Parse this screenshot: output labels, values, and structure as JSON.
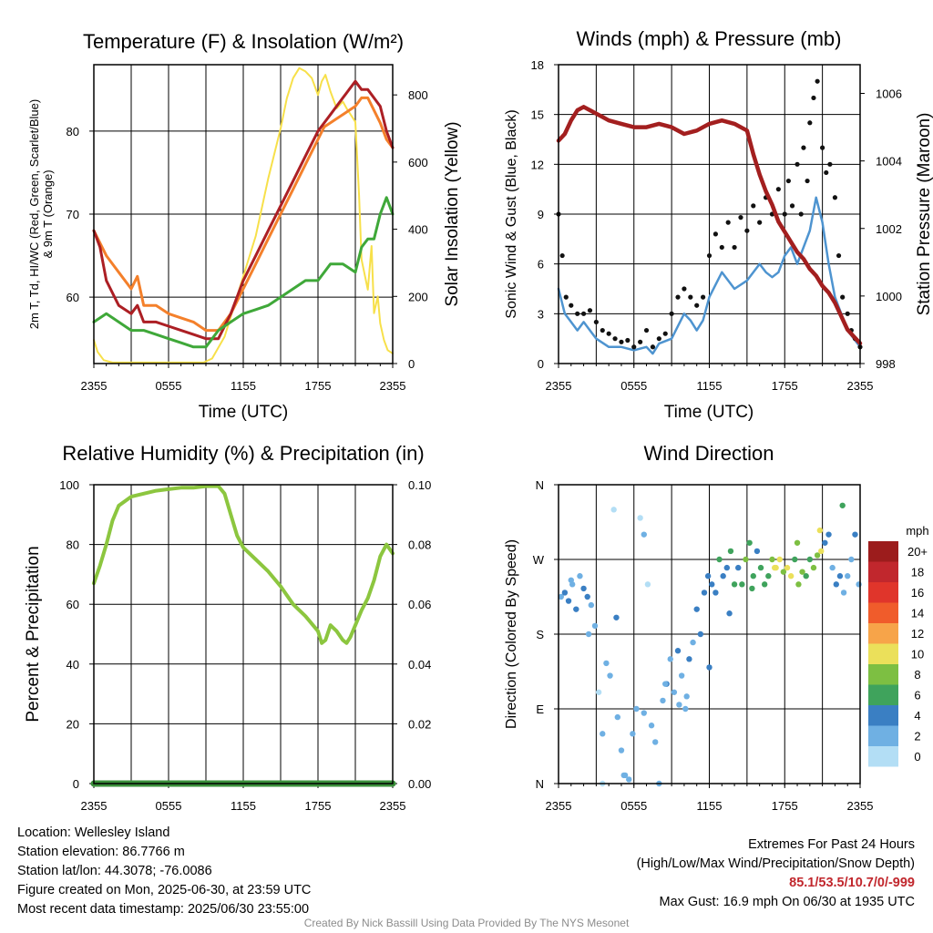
{
  "panels": {
    "temp": {
      "title": "Temperature (F) & Insolation (W/m²)",
      "xlabel": "Time (UTC)",
      "ylabel_left_line1": "2m T, Td, HI/WC (Red, Green, Scarlet/Blue)",
      "ylabel_left_line2": "& 9m T (Orange)",
      "ylabel_right": "Solar Insolation (Yellow)"
    },
    "wind": {
      "title": "Winds (mph) & Pressure (mb)",
      "xlabel": "Time (UTC)",
      "ylabel_left": "Sonic Wind & Gust (Blue, Black)",
      "ylabel_right": "Station Pressure (Maroon)"
    },
    "rh": {
      "title": "Relative Humidity (%) & Precipitation (in)",
      "ylabel_left": "Percent & Precipitation"
    },
    "dir": {
      "title": "Wind Direction",
      "ylabel_left": "Direction (Colored By Speed)",
      "legend_title": "mph"
    }
  },
  "chart_data": [
    {
      "id": "temp",
      "type": "line",
      "title": "Temperature (F) & Insolation (W/m²)",
      "xlabel": "Time (UTC)",
      "x_ticks": [
        "2355",
        "0555",
        "1155",
        "1755",
        "2355"
      ],
      "xlim_hours": [
        0,
        24
      ],
      "ylim_left": [
        52,
        88
      ],
      "yticks_left": [
        60,
        70,
        80
      ],
      "ylim_right": [
        0,
        890
      ],
      "yticks_right": [
        0,
        200,
        400,
        600,
        800
      ],
      "grid": true,
      "series": [
        {
          "axis": "left",
          "color": "#f4802b",
          "width": 3,
          "x": [
            0,
            1,
            2,
            3,
            3.5,
            4,
            5,
            6,
            7,
            8,
            9,
            10,
            11,
            12,
            13,
            14,
            15,
            16,
            17,
            18,
            18.5,
            19,
            20,
            21,
            21.5,
            22,
            23,
            23.5,
            24
          ],
          "y": [
            68,
            65,
            63,
            61,
            62.5,
            59,
            59,
            58,
            57.5,
            57,
            56,
            56,
            58,
            61,
            64,
            67,
            70,
            73,
            76,
            79,
            80.5,
            81,
            82,
            83,
            84,
            84,
            81,
            79,
            78
          ]
        },
        {
          "axis": "left",
          "color": "#ac1f24",
          "width": 3,
          "x": [
            0,
            0.5,
            1,
            2,
            3,
            3.5,
            4,
            5,
            6,
            7,
            8,
            9,
            10,
            11,
            12,
            13,
            14,
            15,
            16,
            17,
            18,
            19,
            20,
            21,
            21.5,
            22,
            23,
            23.5,
            24
          ],
          "y": [
            68,
            66,
            62,
            59,
            58,
            59,
            57,
            57,
            56.5,
            56,
            55.5,
            55,
            55,
            58,
            62,
            65,
            68,
            71,
            74,
            77,
            80,
            82,
            84,
            86,
            85,
            85,
            83,
            80,
            78
          ]
        },
        {
          "axis": "left",
          "color": "#3fa839",
          "width": 3,
          "x": [
            0,
            1,
            2,
            3,
            4,
            5,
            6,
            7,
            8,
            9,
            10,
            11,
            12,
            13,
            14,
            15,
            16,
            17,
            18,
            19,
            20,
            21,
            21.5,
            22,
            22.5,
            23,
            23.5,
            24
          ],
          "y": [
            57,
            58,
            57,
            56,
            56,
            55.5,
            55,
            54.5,
            54,
            54,
            56,
            57,
            58,
            58.5,
            59,
            60,
            61,
            62,
            62,
            64,
            64,
            63,
            66,
            67,
            67,
            70,
            72,
            70
          ]
        },
        {
          "axis": "right",
          "color": "#f7e04a",
          "width": 2,
          "x": [
            0,
            0.3,
            0.8,
            1.5,
            3,
            5,
            7,
            8.8,
            9.5,
            10.5,
            11.5,
            13,
            14,
            15,
            15.5,
            16,
            16.5,
            17,
            17.5,
            18,
            18.3,
            18.6,
            19,
            19.5,
            20,
            20.3,
            21,
            21.3,
            21.5,
            22,
            22.3,
            22.5,
            22.8,
            23,
            23.3,
            23.6,
            24
          ],
          "y": [
            70,
            35,
            10,
            3,
            3,
            3,
            3,
            3,
            15,
            80,
            200,
            380,
            550,
            700,
            790,
            850,
            880,
            870,
            850,
            800,
            840,
            860,
            810,
            760,
            780,
            760,
            720,
            500,
            310,
            220,
            350,
            150,
            200,
            120,
            70,
            40,
            30
          ]
        }
      ]
    },
    {
      "id": "wind",
      "type": "line",
      "title": "Winds (mph) & Pressure (mb)",
      "xlabel": "Time (UTC)",
      "x_ticks": [
        "2355",
        "0555",
        "1155",
        "1755",
        "2355"
      ],
      "xlim_hours": [
        0,
        24
      ],
      "ylim_left": [
        0,
        18
      ],
      "yticks_left": [
        0,
        3,
        6,
        9,
        12,
        15,
        18
      ],
      "ylim_right": [
        998,
        1006.85
      ],
      "yticks_right": [
        998,
        1000,
        1002,
        1004,
        1006
      ],
      "grid": true,
      "series": [
        {
          "axis": "left",
          "color": "#4e94d0",
          "width": 2.5,
          "x": [
            0,
            0.5,
            1,
            1.5,
            2,
            2.5,
            3,
            4,
            5,
            6,
            7,
            7.5,
            8,
            9,
            10,
            10.5,
            11,
            11.5,
            12,
            13,
            14,
            15,
            16,
            16.5,
            17,
            17.5,
            18,
            18.5,
            19,
            19.5,
            20,
            20.5,
            21,
            21.5,
            22,
            22.5,
            23,
            23.5,
            24
          ],
          "y": [
            4.5,
            3,
            2.5,
            2,
            2.5,
            2,
            1.5,
            1,
            1,
            0.8,
            1,
            0.6,
            1.2,
            1.5,
            3,
            2.6,
            2,
            2.6,
            4,
            5.5,
            4.5,
            5,
            6,
            5.5,
            5.2,
            5.5,
            6.5,
            7,
            6,
            7,
            8,
            10,
            8.5,
            6,
            4,
            3,
            2,
            1.5,
            1
          ]
        },
        {
          "axis": "right",
          "color": "#a31f1f",
          "width": 4.5,
          "x": [
            0,
            0.5,
            1,
            1.5,
            2,
            2.5,
            3,
            3.5,
            4,
            5,
            6,
            7,
            8,
            9,
            10,
            11,
            12,
            13,
            14,
            15,
            15.5,
            16,
            16.5,
            17,
            17.5,
            18,
            18.5,
            19,
            19.5,
            20,
            20.5,
            21,
            21.5,
            22,
            22.5,
            23,
            23.5,
            24
          ],
          "y": [
            1004.6,
            1004.8,
            1005.2,
            1005.5,
            1005.6,
            1005.5,
            1005.4,
            1005.3,
            1005.2,
            1005.1,
            1005.0,
            1005.0,
            1005.1,
            1005.0,
            1004.8,
            1004.9,
            1005.1,
            1005.2,
            1005.1,
            1004.9,
            1004.2,
            1003.6,
            1003.1,
            1002.7,
            1002.2,
            1001.9,
            1001.6,
            1001.3,
            1001.1,
            1000.8,
            1000.6,
            1000.3,
            1000.1,
            999.8,
            999.4,
            999.0,
            998.8,
            998.6
          ]
        }
      ],
      "points": {
        "name_hint": "gust",
        "color": "#111111",
        "x": [
          0,
          0.3,
          0.6,
          1,
          1.5,
          2,
          2.5,
          3,
          3.5,
          4,
          4.5,
          5,
          5.5,
          6,
          6.5,
          7,
          7.5,
          8,
          8.5,
          9,
          9.5,
          10,
          10.5,
          11,
          11.5,
          12,
          12.5,
          13,
          13.5,
          14,
          14.5,
          15,
          15.5,
          16,
          16.5,
          17,
          17.5,
          18,
          18.3,
          18.6,
          19,
          19.3,
          19.5,
          19.8,
          20,
          20.3,
          20.6,
          21,
          21.3,
          21.6,
          22,
          22.3,
          22.6,
          23,
          23.3,
          23.6,
          24
        ],
        "y": [
          9,
          6.5,
          4,
          3.5,
          3,
          3,
          3.2,
          2.5,
          2,
          1.8,
          1.5,
          1.3,
          1.4,
          1,
          1.3,
          2,
          1,
          1.5,
          1.8,
          3,
          4,
          4.5,
          4,
          3.5,
          4,
          6.5,
          7.8,
          7,
          8.5,
          7,
          8.8,
          8,
          9.5,
          8.5,
          10,
          9,
          10.5,
          9,
          11,
          9.5,
          12,
          9,
          13,
          11,
          14.5,
          16,
          17,
          13,
          11.5,
          12,
          10,
          6.5,
          4,
          3,
          2,
          1.5,
          1
        ]
      }
    },
    {
      "id": "rh",
      "type": "line",
      "title": "Relative Humidity (%) & Precipitation (in)",
      "x_ticks": [
        "2355",
        "0555",
        "1155",
        "1755",
        "2355"
      ],
      "xlim_hours": [
        0,
        24
      ],
      "ylim_left": [
        0,
        100
      ],
      "yticks_left": [
        0,
        20,
        40,
        60,
        80,
        100
      ],
      "ylim_right": [
        0,
        0.1
      ],
      "yticks_right": [
        "0.00",
        "0.02",
        "0.04",
        "0.06",
        "0.08",
        "0.10"
      ],
      "grid": true,
      "series": [
        {
          "axis": "left",
          "color": "#8cc63f",
          "width": 4,
          "x": [
            0,
            0.5,
            1,
            1.5,
            2,
            3,
            4,
            5,
            6,
            7,
            8,
            9,
            10,
            10.5,
            11,
            11.5,
            12,
            13,
            14,
            15,
            16,
            17,
            18,
            18.3,
            18.6,
            19,
            19.5,
            20,
            20.3,
            20.6,
            21,
            21.5,
            22,
            22.5,
            23,
            23.5,
            24
          ],
          "y": [
            67,
            73,
            80,
            88,
            93,
            96,
            97,
            98,
            98.5,
            99,
            99,
            99.5,
            99.5,
            97,
            90,
            83,
            79,
            75,
            71,
            66,
            60,
            56,
            51,
            47,
            48,
            53,
            51,
            48,
            47,
            49,
            53,
            58,
            62,
            68,
            76,
            80,
            77
          ]
        },
        {
          "axis": "right",
          "color": "#3a8f3a",
          "width": 7,
          "x": [
            0,
            24
          ],
          "y": [
            0,
            0
          ]
        }
      ]
    },
    {
      "id": "dir",
      "type": "scatter",
      "title": "Wind Direction",
      "x_ticks": [
        "2355",
        "0555",
        "1155",
        "1755",
        "2355"
      ],
      "xlim_hours": [
        0,
        24
      ],
      "ylim_left": [
        0,
        360
      ],
      "yticks_left": [
        "N",
        "E",
        "S",
        "W",
        "N"
      ],
      "grid": true,
      "legend": {
        "title": "mph",
        "placement": "right",
        "labels": [
          "20+",
          "18",
          "16",
          "14",
          "12",
          "10",
          "8",
          "6",
          "4",
          "2",
          "0"
        ],
        "colors": [
          "#9c1c1c",
          "#c1272d",
          "#e0352b",
          "#f05c2b",
          "#f7a449",
          "#ebe05a",
          "#7dbf42",
          "#3fa35c",
          "#3a7fc3",
          "#6fb0e3",
          "#b3def5"
        ]
      },
      "points": {
        "x": [
          0.2,
          0.5,
          0.8,
          1.1,
          1.4,
          1.7,
          2,
          2.3,
          2.6,
          2.9,
          3.2,
          3.5,
          3.8,
          4.1,
          4.4,
          4.7,
          5,
          5.3,
          5.6,
          5.9,
          6.2,
          6.5,
          6.8,
          7.1,
          7.4,
          7.7,
          8,
          8.3,
          8.6,
          8.9,
          9.2,
          9.5,
          9.8,
          10.1,
          10.4,
          10.7,
          11,
          11.3,
          11.6,
          11.9,
          12.2,
          12.5,
          12.8,
          13.1,
          13.4,
          13.7,
          14,
          14.3,
          14.6,
          14.9,
          15.2,
          15.5,
          15.8,
          16.1,
          16.4,
          16.7,
          17,
          17.3,
          17.6,
          17.9,
          18.2,
          18.5,
          18.8,
          19.1,
          19.4,
          19.7,
          20,
          20.3,
          20.6,
          20.9,
          21.2,
          21.5,
          21.8,
          22.1,
          22.4,
          22.7,
          23,
          23.3,
          23.6,
          23.9,
          3.5,
          5.2,
          6.8,
          8.5,
          10.2,
          12,
          13.6,
          15.4,
          17.2,
          19,
          20.8,
          22.6,
          4.6,
          2.4,
          1,
          9.6
        ],
        "y": [
          225,
          230,
          220,
          240,
          210,
          250,
          235,
          225,
          215,
          190,
          110,
          60,
          145,
          130,
          330,
          80,
          40,
          10,
          5,
          60,
          90,
          320,
          300,
          240,
          70,
          50,
          0,
          100,
          120,
          150,
          110,
          160,
          130,
          90,
          150,
          170,
          210,
          180,
          230,
          250,
          240,
          230,
          270,
          250,
          260,
          280,
          240,
          260,
          240,
          270,
          290,
          250,
          280,
          260,
          240,
          250,
          270,
          260,
          270,
          255,
          260,
          250,
          270,
          240,
          255,
          250,
          270,
          260,
          275,
          280,
          290,
          300,
          260,
          240,
          250,
          230,
          250,
          270,
          300,
          240,
          0,
          10,
          85,
          120,
          105,
          140,
          205,
          235,
          260,
          290,
          305,
          335,
          200,
          180,
          245,
          95
        ],
        "speed": [
          2,
          4,
          3,
          2,
          3,
          1,
          4,
          3,
          2,
          1,
          0,
          1,
          1,
          2,
          0,
          1,
          2,
          1,
          1,
          2,
          1,
          0,
          1,
          0,
          1,
          2,
          1,
          2,
          3,
          2,
          1,
          3,
          2,
          2,
          3,
          2,
          3,
          4,
          3,
          4,
          3,
          4,
          5,
          4,
          3,
          5,
          6,
          4,
          5,
          7,
          6,
          5,
          4,
          6,
          5,
          6,
          7,
          9,
          10,
          8,
          9,
          10,
          6,
          7,
          8,
          5,
          6,
          7,
          8,
          9,
          4,
          3,
          2,
          3,
          4,
          2,
          1,
          2,
          3,
          1,
          0,
          1,
          1,
          2,
          2,
          3,
          4,
          6,
          9,
          8,
          9,
          5,
          3,
          2,
          1,
          2
        ]
      }
    }
  ],
  "info_left": {
    "location": "Location: Wellesley Island",
    "elevation": "Station elevation: 86.7766 m",
    "latlon": "Station lat/lon: 44.3078; -76.0086",
    "created": "Figure created on Mon, 2025-06-30, at 23:59 UTC",
    "recent": "Most recent data timestamp: 2025/06/30 23:55:00"
  },
  "info_right": {
    "extremes_title": "Extremes For Past 24 Hours",
    "extremes_legend": "(High/Low/Max Wind/Precipitation/Snow Depth)",
    "extremes_values": "85.1/53.5/10.7/0/-999",
    "max_gust": "Max Gust: 16.9 mph On 06/30 at 1935 UTC"
  },
  "credit": "Created By Nick Bassill Using Data Provided By The NYS Mesonet"
}
